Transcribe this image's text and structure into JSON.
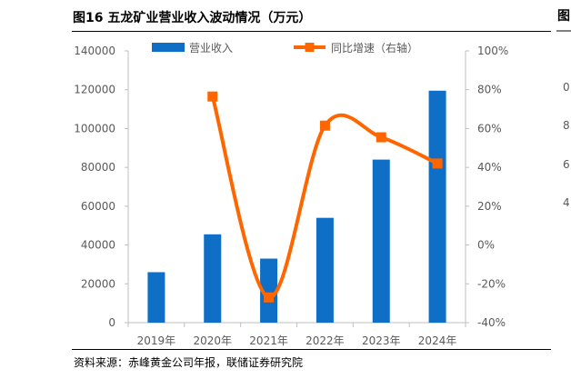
{
  "figure": {
    "title": "图16 五龙矿业营业收入波动情况（万元）",
    "source": "资料来源：赤峰黄金公司年报，联储证券研究院"
  },
  "chart_data": {
    "type": "bar",
    "categories": [
      "2019年",
      "2020年",
      "2021年",
      "2022年",
      "2023年",
      "2024年"
    ],
    "series": [
      {
        "name": "营业收入",
        "type": "bar",
        "axis": "left",
        "color": "#0F6FC6",
        "values": [
          26000,
          45500,
          33000,
          54000,
          84000,
          119500
        ]
      },
      {
        "name": "同比增速（右轴）",
        "type": "line",
        "axis": "right",
        "color": "#FF6600",
        "unit": "%",
        "values": [
          null,
          76.5,
          -27,
          61.5,
          55.5,
          42
        ]
      }
    ],
    "y_left": {
      "ylim": [
        0,
        140000
      ],
      "ticks": [
        0,
        20000,
        40000,
        60000,
        80000,
        100000,
        120000,
        140000
      ],
      "tick_labels": [
        "0",
        "20000",
        "40000",
        "60000",
        "80000",
        "100000",
        "120000",
        "140000"
      ]
    },
    "y_right": {
      "ylim": [
        -40,
        100
      ],
      "ticks": [
        -40,
        -20,
        0,
        20,
        40,
        60,
        80,
        100
      ],
      "tick_labels": [
        "-40%",
        "-20%",
        "0%",
        "20%",
        "40%",
        "60%",
        "80%",
        "100%"
      ]
    },
    "legend": "top",
    "grid": false,
    "tick_color": "#595959"
  },
  "clipped_right_panel": {
    "title_fragment": "图",
    "tick_fragments": [
      "0",
      "8",
      "6",
      "4"
    ]
  }
}
